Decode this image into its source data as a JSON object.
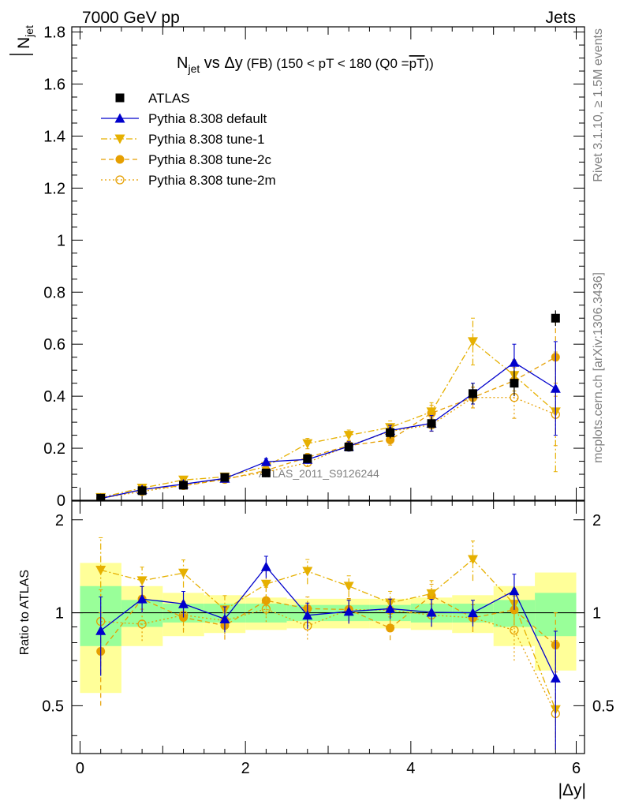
{
  "header": {
    "energy_label": "7000 GeV pp",
    "category_label": "Jets"
  },
  "side_text": {
    "rivet": "Rivet 3.1.10, ≥ 1.5M events",
    "mcplots": "mcplots.cern.ch [arXiv:1306.3436]"
  },
  "chart_data": {
    "type": "scatter",
    "title": {
      "main": "N",
      "sub": "jet",
      "rest": " vs Δy",
      "small": " (FB) (150 < pT < 180 (Q0 =",
      "overline": "pT",
      "tail": "))"
    },
    "watermark": "ATLAS_2011_S9126244",
    "ylabel_main": "N",
    "ylabel_sub": "jet",
    "xlabel": "|Δy|",
    "ratio_ylabel": "Ratio to ATLAS",
    "xlim": [
      -0.1,
      6.1
    ],
    "ylim": [
      0,
      1.82
    ],
    "ratio_ylim": [
      0.35,
      2.3
    ],
    "ratio_log": true,
    "xticks": [
      0,
      2,
      4,
      6
    ],
    "xtick_labels": [
      "0",
      "2",
      "4",
      "6"
    ],
    "yticks": [
      0,
      0.2,
      0.4,
      0.6,
      0.8,
      1,
      1.2,
      1.4,
      1.6,
      1.8
    ],
    "ytick_labels": [
      "0",
      "0.2",
      "0.4",
      "0.6",
      "0.8",
      "1",
      "1.2",
      "1.4",
      "1.6",
      "1.8"
    ],
    "ratio_yticks": [
      0.5,
      1,
      2
    ],
    "ratio_ytick_labels": [
      "0.5",
      "1",
      "2"
    ],
    "legend_position": "top-left",
    "x": [
      0.25,
      0.75,
      1.25,
      1.75,
      2.25,
      2.75,
      3.25,
      3.75,
      4.25,
      4.75,
      5.25,
      5.75
    ],
    "bin_edges": [
      0,
      0.5,
      1,
      1.5,
      2,
      2.5,
      3,
      3.5,
      4,
      4.5,
      5,
      5.5,
      6
    ],
    "band_green": [
      0.22,
      0.1,
      0.07,
      0.07,
      0.07,
      0.06,
      0.06,
      0.06,
      0.07,
      0.07,
      0.1,
      0.16
    ],
    "band_yellow": [
      0.45,
      0.22,
      0.16,
      0.14,
      0.12,
      0.11,
      0.11,
      0.11,
      0.12,
      0.14,
      0.22,
      0.35
    ],
    "series": [
      {
        "name": "ATLAS",
        "color": "#000000",
        "marker": "square",
        "dash": "",
        "values": [
          0.008,
          0.037,
          0.058,
          0.088,
          0.105,
          0.16,
          0.205,
          0.26,
          0.295,
          0.41,
          0.45,
          0.7
        ],
        "errors": [
          0.002,
          0.004,
          0.006,
          0.008,
          0.01,
          0.015,
          0.018,
          0.022,
          0.025,
          0.04,
          0.05,
          0.03
        ]
      },
      {
        "name": "Pythia 8.308 default",
        "color": "#0000cc",
        "marker": "triangle-up",
        "dash": "",
        "values": [
          0.007,
          0.041,
          0.062,
          0.084,
          0.148,
          0.157,
          0.207,
          0.268,
          0.296,
          0.41,
          0.53,
          0.43
        ],
        "errors": [
          0.002,
          0.004,
          0.006,
          0.008,
          0.012,
          0.015,
          0.018,
          0.02,
          0.03,
          0.04,
          0.07,
          0.18
        ]
      },
      {
        "name": "Pythia 8.308 tune-1",
        "color": "#e6b000",
        "marker": "triangle-down",
        "dash": "8 3 2 3",
        "values": [
          0.011,
          0.047,
          0.078,
          0.09,
          0.13,
          0.218,
          0.25,
          0.28,
          0.34,
          0.61,
          0.48,
          0.34
        ],
        "errors": [
          0.003,
          0.005,
          0.008,
          0.01,
          0.015,
          0.02,
          0.02,
          0.025,
          0.035,
          0.09,
          0.06,
          0.23
        ]
      },
      {
        "name": "Pythia 8.308 tune-2c",
        "color": "#e69f00",
        "marker": "circle",
        "dash": "6 4",
        "values": [
          0.006,
          0.041,
          0.056,
          0.08,
          0.115,
          0.165,
          0.21,
          0.232,
          0.335,
          0.395,
          0.46,
          0.55
        ],
        "errors": [
          0.002,
          0.004,
          0.006,
          0.008,
          0.012,
          0.015,
          0.018,
          0.02,
          0.03,
          0.04,
          0.05,
          0.15
        ]
      },
      {
        "name": "Pythia 8.308 tune-2m",
        "color": "#e69f00",
        "marker": "circle-open",
        "dash": "2 3",
        "values": [
          0.0075,
          0.034,
          0.057,
          0.083,
          0.108,
          0.145,
          0.21,
          0.265,
          0.29,
          0.395,
          0.395,
          0.33
        ],
        "errors": [
          0.002,
          0.004,
          0.006,
          0.008,
          0.01,
          0.014,
          0.016,
          0.02,
          0.025,
          0.04,
          0.08,
          0.12
        ]
      }
    ]
  }
}
